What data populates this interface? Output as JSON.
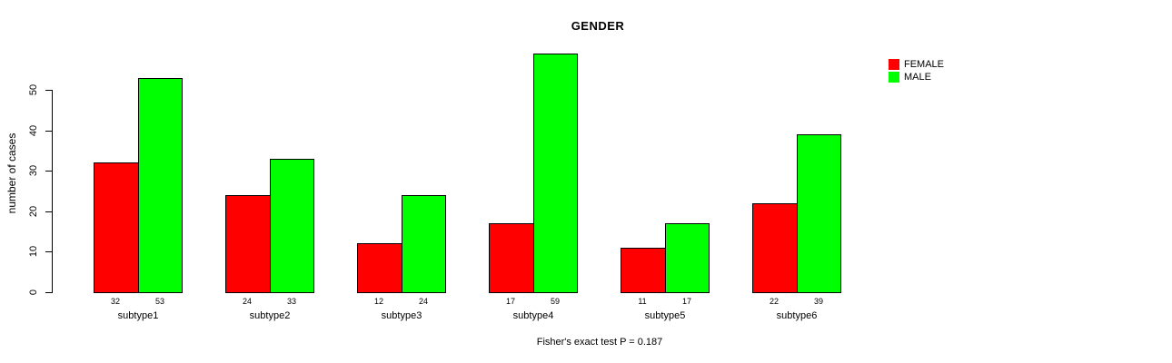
{
  "chart_data": {
    "type": "bar",
    "title": "GENDER",
    "ylabel": "number of cases",
    "xlabel": "",
    "caption": "Fisher's exact test P = 0.187",
    "categories": [
      "subtype1",
      "subtype2",
      "subtype3",
      "subtype4",
      "subtype5",
      "subtype6"
    ],
    "series": [
      {
        "name": "FEMALE",
        "color": "#ff0000",
        "values": [
          32,
          24,
          12,
          17,
          11,
          22
        ]
      },
      {
        "name": "MALE",
        "color": "#00ff00",
        "values": [
          53,
          33,
          24,
          59,
          17,
          39
        ]
      }
    ],
    "bar_value_labels": [
      [
        "32",
        "53"
      ],
      [
        "24",
        "33"
      ],
      [
        "12",
        "24"
      ],
      [
        "17",
        "59"
      ],
      [
        "11",
        "17"
      ],
      [
        "22",
        "39"
      ]
    ],
    "yticks": [
      "0",
      "10",
      "20",
      "30",
      "40",
      "50"
    ],
    "ylim": [
      0,
      59
    ],
    "grid": false,
    "legend_position": "top-right",
    "colors": {
      "background": "#ffffff",
      "text": "#000000",
      "bar_border": "#000000",
      "female": "#ff0000",
      "male": "#00ff00"
    },
    "legend": {
      "items": [
        {
          "label": "FEMALE",
          "color": "#ff0000"
        },
        {
          "label": "MALE",
          "color": "#00ff00"
        }
      ]
    }
  }
}
